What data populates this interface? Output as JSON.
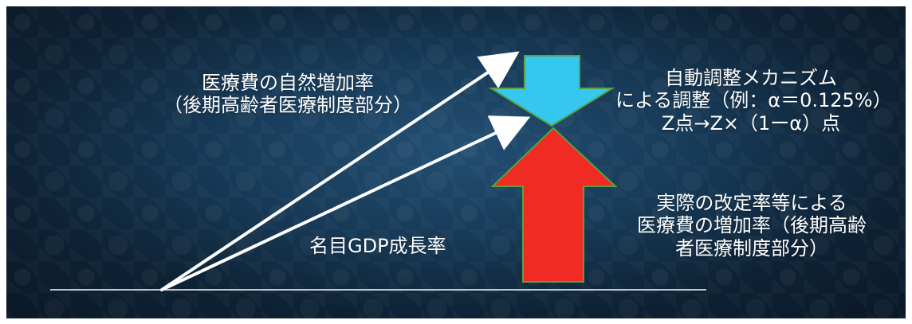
{
  "labels": {
    "natural_growth_line1": "医療費の自然増加率",
    "natural_growth_line2": "（後期高齢者医療制度部分）",
    "nominal_gdp": "名目GDP成長率",
    "auto_adjust_line1": "自動調整メカニズム",
    "auto_adjust_line2": "による調整（例：α＝0.125%）",
    "auto_adjust_line3": "Z点→Z×（1ーα）点",
    "actual_increase_line1": "実際の改定率等による",
    "actual_increase_line2": "医療費の増加率（後期高齢",
    "actual_increase_line3": "者医療制度部分）"
  },
  "colors": {
    "background_dark": "#0e2235",
    "background_mid": "#173a57",
    "white": "#ffffff",
    "cyan_arrow": "#35c7f0",
    "red_arrow": "#ef2b24",
    "arrow_outline": "#5aa142"
  },
  "icons": {
    "natural_growth": "white-arrow-icon",
    "gdp_growth": "white-arrow-icon",
    "adjustment": "down-arrow-icon",
    "actual_growth": "up-arrow-icon"
  }
}
